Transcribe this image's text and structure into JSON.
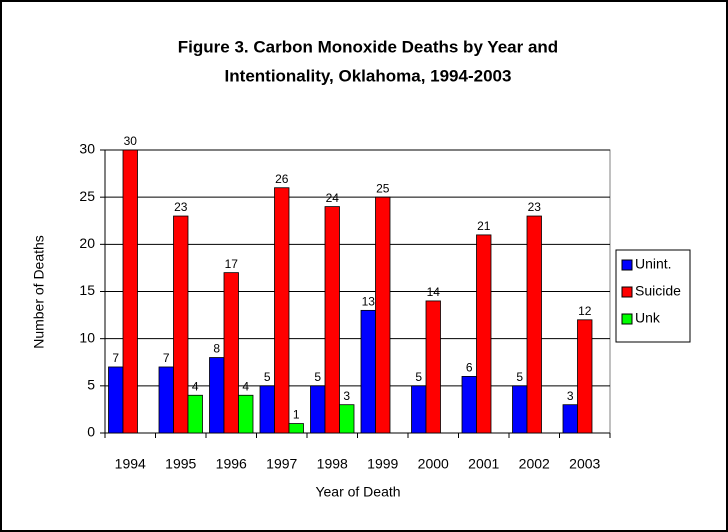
{
  "chart_data": {
    "type": "bar",
    "title": "Figure 3. Carbon Monoxide Deaths by Year and",
    "subtitle": "Intentionality, Oklahoma, 1994-2003",
    "x_label": "Year of Death",
    "y_label": "Number of Deaths",
    "categories": [
      "1994",
      "1995",
      "1996",
      "1997",
      "1998",
      "1999",
      "2000",
      "2001",
      "2002",
      "2003"
    ],
    "series": [
      {
        "name": "Unint.",
        "color": "#0000ff",
        "values": [
          7,
          7,
          8,
          5,
          5,
          13,
          5,
          6,
          5,
          3
        ]
      },
      {
        "name": "Suicide",
        "color": "#ff0000",
        "values": [
          30,
          23,
          17,
          26,
          24,
          25,
          14,
          21,
          23,
          12
        ]
      },
      {
        "name": "Unk",
        "color": "#00ff00",
        "values": [
          0,
          4,
          4,
          1,
          3,
          0,
          0,
          0,
          0,
          0
        ]
      }
    ],
    "ylim": [
      0,
      30
    ],
    "yticks": [
      0,
      5,
      10,
      15,
      20,
      25,
      30
    ],
    "grid": true,
    "legend": "right"
  }
}
